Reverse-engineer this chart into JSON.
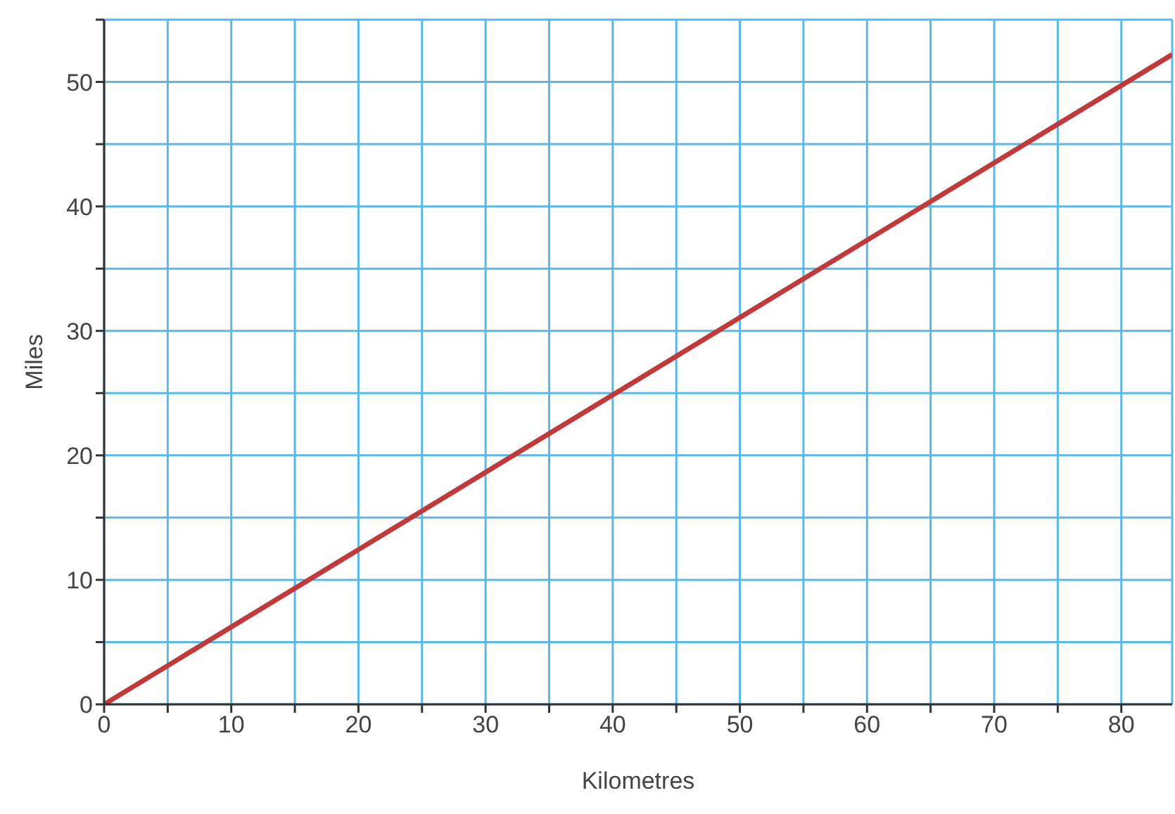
{
  "chart_data": {
    "type": "line",
    "xlabel": "Kilometres",
    "ylabel": "Miles",
    "x": [
      0,
      84
    ],
    "series": [
      {
        "color": "#c0393b",
        "values": [
          0,
          52.2
        ]
      }
    ],
    "xlim": [
      0,
      84
    ],
    "ylim": [
      0,
      55
    ],
    "xticks": [
      0,
      {
        "value": 5,
        "label": null
      },
      10,
      {
        "value": 15,
        "label": null
      },
      20,
      {
        "value": 25,
        "label": null
      },
      30,
      {
        "value": 35,
        "label": null
      },
      40,
      {
        "value": 45,
        "label": null
      },
      50,
      {
        "value": 55,
        "label": null
      },
      60,
      {
        "value": 65,
        "label": null
      },
      70,
      {
        "value": 75,
        "label": null
      },
      80
    ],
    "yticks": [
      0,
      {
        "value": 5,
        "label": null
      },
      10,
      {
        "value": 15,
        "label": null
      },
      20,
      {
        "value": 25,
        "label": null
      },
      30,
      {
        "value": 35,
        "label": null
      },
      40,
      {
        "value": 45,
        "label": null
      },
      50,
      {
        "value": 55,
        "label": null
      }
    ],
    "grid": true,
    "marker": "none",
    "line_style": "solid",
    "legend": false
  }
}
